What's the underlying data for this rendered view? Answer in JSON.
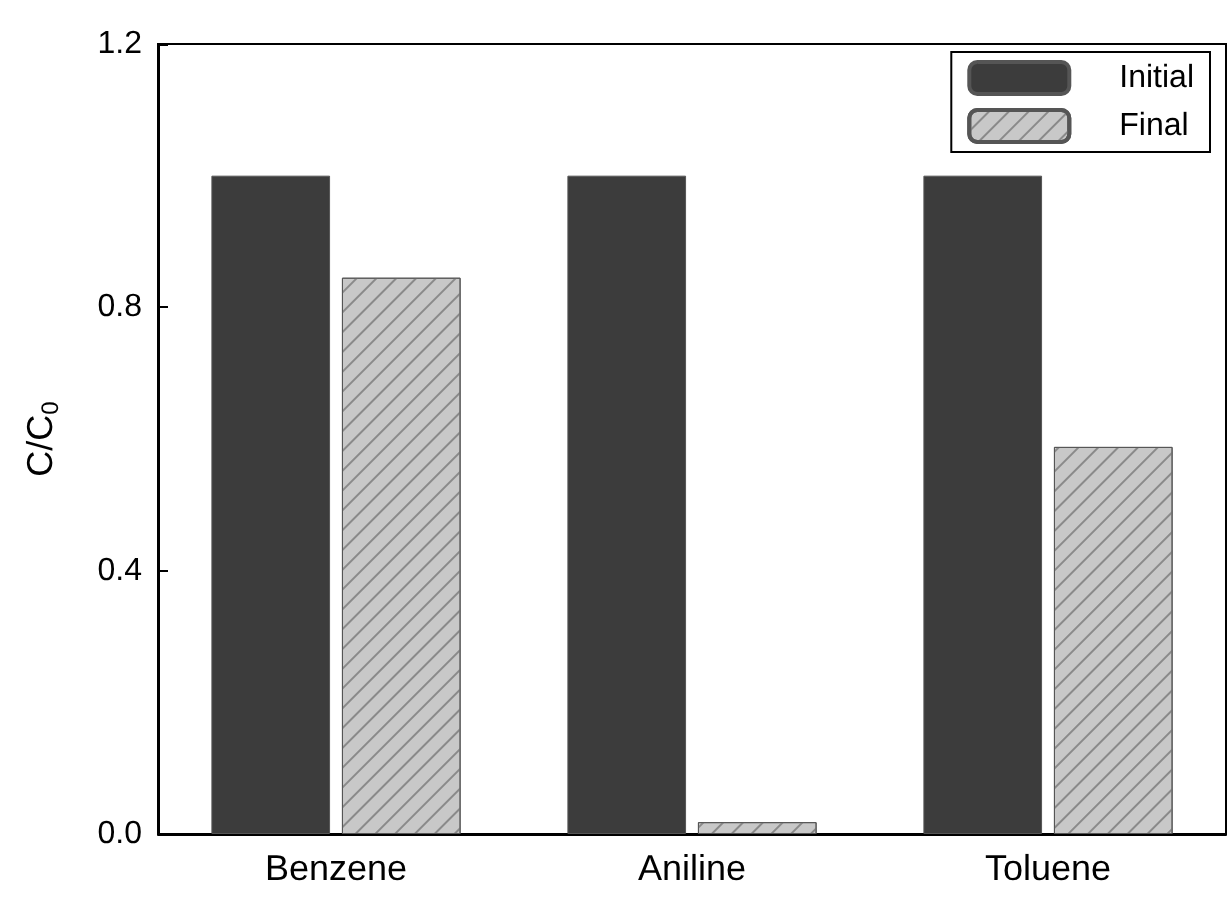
{
  "chart_data": {
    "type": "bar",
    "ylabel": "C/C$_{0}$",
    "categories": [
      "Benzene",
      "Aniline",
      "Toluene"
    ],
    "series": [
      {
        "name": "Initial",
        "color": "#3c3c3c",
        "values": [
          1.0,
          1.0,
          1.0
        ]
      },
      {
        "name": "Final",
        "color": "#c8c8c8",
        "values": [
          0.845,
          0.018,
          0.588
        ]
      }
    ],
    "ylim": [
      0,
      1.2
    ],
    "yticks": [
      {
        "value": 0,
        "label": "0.0"
      },
      {
        "value": 0.4,
        "label": "0.4"
      },
      {
        "value": 0.8,
        "label": "0.8"
      },
      {
        "value": 1.2,
        "label": "1.2"
      }
    ],
    "grid": false,
    "legend": "top right"
  }
}
